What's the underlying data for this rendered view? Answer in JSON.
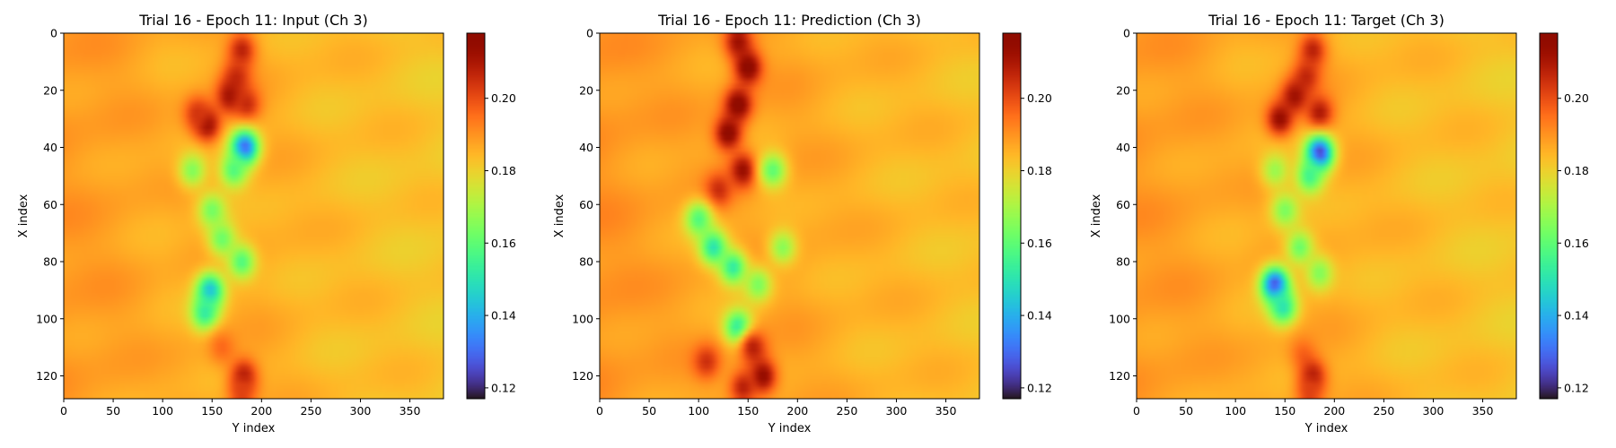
{
  "colormap": "turbo",
  "colorbar": {
    "min": 0.117,
    "max": 0.218,
    "ticks": [
      0.12,
      0.14,
      0.16,
      0.18,
      0.2
    ],
    "tick_labels": [
      "0.12",
      "0.14",
      "0.16",
      "0.18",
      "0.20"
    ]
  },
  "chart_data": [
    {
      "type": "heatmap",
      "title": "Trial 16 - Epoch 11: Input (Ch 3)",
      "xlabel": "Y index",
      "ylabel": "X index",
      "xlim": [
        0,
        384
      ],
      "ylim": [
        128,
        0
      ],
      "xticks": [
        0,
        50,
        100,
        150,
        200,
        250,
        300,
        350
      ],
      "xtick_labels": [
        "0",
        "50",
        "100",
        "150",
        "200",
        "250",
        "300",
        "350"
      ],
      "yticks": [
        0,
        20,
        40,
        60,
        80,
        100,
        120
      ],
      "ytick_labels": [
        "0",
        "20",
        "40",
        "60",
        "80",
        "100",
        "120"
      ],
      "background": [
        {
          "x": 0,
          "value": 0.189
        },
        {
          "x": 50,
          "value": 0.188
        },
        {
          "x": 100,
          "value": 0.186
        },
        {
          "x": 200,
          "value": 0.186
        },
        {
          "x": 260,
          "value": 0.184
        },
        {
          "x": 384,
          "value": 0.182
        }
      ],
      "features": [
        {
          "x": 180,
          "y": 6,
          "value": 0.208
        },
        {
          "x": 175,
          "y": 15,
          "value": 0.205
        },
        {
          "x": 168,
          "y": 22,
          "value": 0.212
        },
        {
          "x": 145,
          "y": 32,
          "value": 0.214
        },
        {
          "x": 135,
          "y": 28,
          "value": 0.204
        },
        {
          "x": 185,
          "y": 25,
          "value": 0.206
        },
        {
          "x": 183,
          "y": 40,
          "value": 0.128
        },
        {
          "x": 172,
          "y": 48,
          "value": 0.158
        },
        {
          "x": 130,
          "y": 48,
          "value": 0.165
        },
        {
          "x": 150,
          "y": 62,
          "value": 0.163
        },
        {
          "x": 160,
          "y": 72,
          "value": 0.162
        },
        {
          "x": 180,
          "y": 80,
          "value": 0.158
        },
        {
          "x": 148,
          "y": 90,
          "value": 0.142
        },
        {
          "x": 143,
          "y": 98,
          "value": 0.152
        },
        {
          "x": 160,
          "y": 110,
          "value": 0.196
        },
        {
          "x": 182,
          "y": 120,
          "value": 0.21
        },
        {
          "x": 180,
          "y": 126,
          "value": 0.202
        }
      ]
    },
    {
      "type": "heatmap",
      "title": "Trial 16 - Epoch 11: Prediction (Ch 3)",
      "xlabel": "Y index",
      "ylabel": "X index",
      "xlim": [
        0,
        384
      ],
      "ylim": [
        128,
        0
      ],
      "xticks": [
        0,
        50,
        100,
        150,
        200,
        250,
        300,
        350
      ],
      "xtick_labels": [
        "0",
        "50",
        "100",
        "150",
        "200",
        "250",
        "300",
        "350"
      ],
      "yticks": [
        0,
        20,
        40,
        60,
        80,
        100,
        120
      ],
      "ytick_labels": [
        "0",
        "20",
        "40",
        "60",
        "80",
        "100",
        "120"
      ],
      "background": [
        {
          "x": 0,
          "value": 0.19
        },
        {
          "x": 50,
          "value": 0.188
        },
        {
          "x": 100,
          "value": 0.187
        },
        {
          "x": 200,
          "value": 0.187
        },
        {
          "x": 260,
          "value": 0.185
        },
        {
          "x": 384,
          "value": 0.183
        }
      ],
      "features": [
        {
          "x": 140,
          "y": 3,
          "value": 0.212
        },
        {
          "x": 150,
          "y": 12,
          "value": 0.218
        },
        {
          "x": 140,
          "y": 25,
          "value": 0.218
        },
        {
          "x": 130,
          "y": 35,
          "value": 0.217
        },
        {
          "x": 145,
          "y": 48,
          "value": 0.214
        },
        {
          "x": 120,
          "y": 55,
          "value": 0.206
        },
        {
          "x": 175,
          "y": 48,
          "value": 0.16
        },
        {
          "x": 100,
          "y": 65,
          "value": 0.158
        },
        {
          "x": 115,
          "y": 75,
          "value": 0.15
        },
        {
          "x": 135,
          "y": 82,
          "value": 0.152
        },
        {
          "x": 160,
          "y": 88,
          "value": 0.164
        },
        {
          "x": 185,
          "y": 75,
          "value": 0.166
        },
        {
          "x": 140,
          "y": 103,
          "value": 0.15
        },
        {
          "x": 155,
          "y": 110,
          "value": 0.208
        },
        {
          "x": 165,
          "y": 120,
          "value": 0.215
        },
        {
          "x": 145,
          "y": 124,
          "value": 0.208
        },
        {
          "x": 108,
          "y": 115,
          "value": 0.205
        }
      ]
    },
    {
      "type": "heatmap",
      "title": "Trial 16 - Epoch 11: Target (Ch 3)",
      "xlabel": "Y index",
      "ylabel": "X index",
      "xlim": [
        0,
        384
      ],
      "ylim": [
        128,
        0
      ],
      "xticks": [
        0,
        50,
        100,
        150,
        200,
        250,
        300,
        350
      ],
      "xtick_labels": [
        "0",
        "50",
        "100",
        "150",
        "200",
        "250",
        "300",
        "350"
      ],
      "yticks": [
        0,
        20,
        40,
        60,
        80,
        100,
        120
      ],
      "ytick_labels": [
        "0",
        "20",
        "40",
        "60",
        "80",
        "100",
        "120"
      ],
      "background": [
        {
          "x": 0,
          "value": 0.189
        },
        {
          "x": 50,
          "value": 0.188
        },
        {
          "x": 100,
          "value": 0.186
        },
        {
          "x": 200,
          "value": 0.186
        },
        {
          "x": 260,
          "value": 0.184
        },
        {
          "x": 384,
          "value": 0.182
        }
      ],
      "features": [
        {
          "x": 178,
          "y": 6,
          "value": 0.208
        },
        {
          "x": 172,
          "y": 15,
          "value": 0.206
        },
        {
          "x": 160,
          "y": 22,
          "value": 0.212
        },
        {
          "x": 145,
          "y": 30,
          "value": 0.214
        },
        {
          "x": 185,
          "y": 28,
          "value": 0.21
        },
        {
          "x": 185,
          "y": 42,
          "value": 0.122
        },
        {
          "x": 175,
          "y": 50,
          "value": 0.155
        },
        {
          "x": 140,
          "y": 48,
          "value": 0.168
        },
        {
          "x": 150,
          "y": 62,
          "value": 0.164
        },
        {
          "x": 165,
          "y": 75,
          "value": 0.162
        },
        {
          "x": 185,
          "y": 84,
          "value": 0.165
        },
        {
          "x": 140,
          "y": 88,
          "value": 0.125
        },
        {
          "x": 148,
          "y": 96,
          "value": 0.15
        },
        {
          "x": 168,
          "y": 112,
          "value": 0.196
        },
        {
          "x": 178,
          "y": 120,
          "value": 0.21
        },
        {
          "x": 175,
          "y": 126,
          "value": 0.202
        }
      ]
    }
  ]
}
